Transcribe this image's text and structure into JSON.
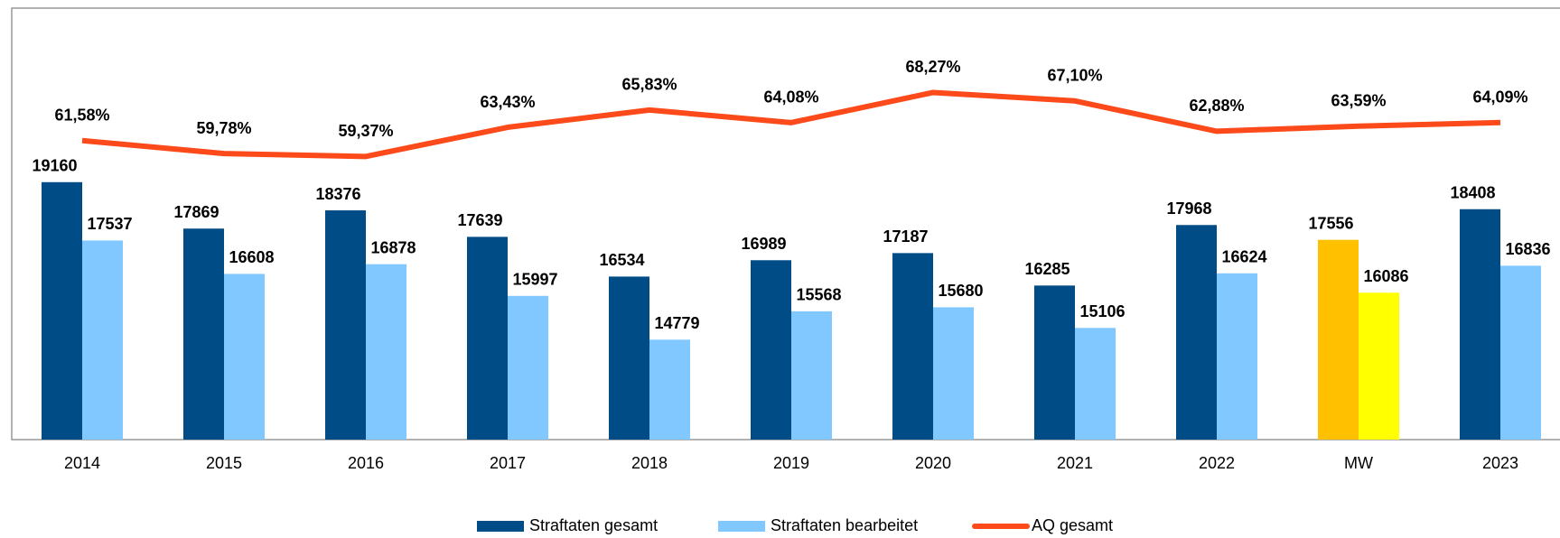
{
  "chart_data": {
    "type": "bar",
    "categories": [
      "2014",
      "2015",
      "2016",
      "2017",
      "2018",
      "2019",
      "2020",
      "2021",
      "2022",
      "MW",
      "2023"
    ],
    "ylim": [
      12000,
      24000
    ],
    "y2lim": [
      20,
      80
    ],
    "legend": "bottom",
    "series": [
      {
        "name": "Straftaten gesamt",
        "type": "bar",
        "color": "#004c87",
        "colors": [
          "#004c87",
          "#004c87",
          "#004c87",
          "#004c87",
          "#004c87",
          "#004c87",
          "#004c87",
          "#004c87",
          "#004c87",
          "#ffc000",
          "#004c87"
        ],
        "values": [
          19160,
          17869,
          18376,
          17639,
          16534,
          16989,
          17187,
          16285,
          17968,
          17556,
          18408
        ]
      },
      {
        "name": "Straftaten bearbeitet",
        "type": "bar",
        "color": "#80c8ff",
        "colors": [
          "#80c8ff",
          "#80c8ff",
          "#80c8ff",
          "#80c8ff",
          "#80c8ff",
          "#80c8ff",
          "#80c8ff",
          "#80c8ff",
          "#80c8ff",
          "#ffff00",
          "#80c8ff"
        ],
        "values": [
          17537,
          16608,
          16878,
          15997,
          14779,
          15568,
          15680,
          15106,
          16624,
          16086,
          16836
        ]
      },
      {
        "name": "AQ gesamt",
        "type": "line",
        "axis": "y2",
        "color": "#fc4a1a",
        "values": [
          61.58,
          59.78,
          59.37,
          63.43,
          65.83,
          64.08,
          68.27,
          67.1,
          62.88,
          63.59,
          64.09
        ],
        "value_labels": [
          "61,58%",
          "59,78%",
          "59,37%",
          "63,43%",
          "65,83%",
          "64,08%",
          "68,27%",
          "67,10%",
          "62,88%",
          "63,59%",
          "64,09%"
        ]
      }
    ]
  }
}
